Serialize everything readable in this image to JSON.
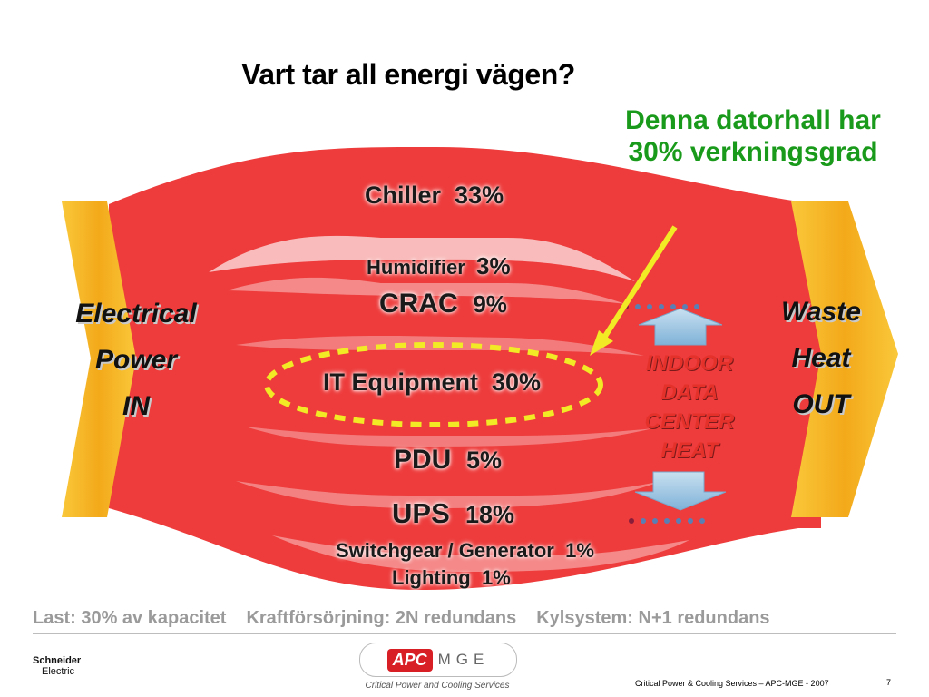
{
  "title": "Vart tar all energi vägen?",
  "note": {
    "line1": "Denna datorhall har",
    "line2": "30% verkningsgrad"
  },
  "input": {
    "line1": "Electrical",
    "line2": "Power",
    "line3": "IN"
  },
  "output": {
    "line1": "Waste",
    "line2": "Heat",
    "line3": "OUT"
  },
  "indoor_heat": {
    "line1": "INDOOR",
    "line2": "DATA",
    "line3": "CENTER",
    "line4": "HEAT"
  },
  "flows": [
    {
      "name": "Chiller",
      "value": "33%"
    },
    {
      "name": "Humidifier",
      "value": "3%"
    },
    {
      "name": "CRAC",
      "value": "9%"
    },
    {
      "name": "IT Equipment",
      "value": "30%"
    },
    {
      "name": "PDU",
      "value": "5%"
    },
    {
      "name": "UPS",
      "value": "18%"
    },
    {
      "name": "Switchgear / Generator",
      "value": "1%"
    },
    {
      "name": "Lighting",
      "value": "1%"
    }
  ],
  "footer": {
    "load": "Last: 30% av kapacitet",
    "power": "Kraftförsörjning: 2N redundans",
    "cooling": "Kylsystem: N+1 redundans"
  },
  "logos": {
    "schneider_line1": "Schneider",
    "schneider_line2": "Electric",
    "apc": "APC",
    "mge": "MGE",
    "tagline": "Critical Power and Cooling Services"
  },
  "credit": "Critical Power & Cooling Services – APC-MGE - 2007",
  "page_number": "7",
  "colors": {
    "flow": "#ee3b3b",
    "flow_dark": "#d92e2e",
    "bar": "#f5b21c",
    "note": "#1a9a1a",
    "highlight": "#f1ea24",
    "heat_text": "#e4322b",
    "arrow": "#9cc6e4"
  }
}
